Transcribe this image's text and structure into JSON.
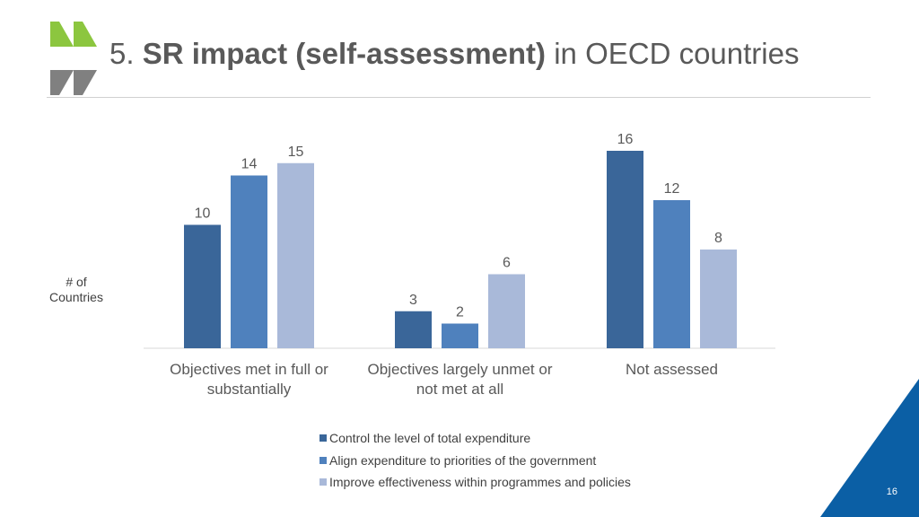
{
  "slide": {
    "title_prefix": "5. ",
    "title_bold": "SR impact (self-assessment)",
    "title_suffix": " in OECD countries",
    "page_number": "16",
    "logo_colors": [
      "#8cc63f",
      "#808080"
    ],
    "corner_color": "#0b5fa5"
  },
  "chart_data": {
    "type": "bar",
    "title": "5. SR impact (self-assessment) in OECD countries",
    "xlabel": "",
    "ylabel": "# of Countries",
    "ylabel_lines": [
      "# of",
      "Countries"
    ],
    "ylim": [
      0,
      16
    ],
    "grid": false,
    "legend_position": "bottom",
    "categories": [
      {
        "lines": [
          "Objectives met in full or",
          "substantially"
        ]
      },
      {
        "lines": [
          "Objectives largely unmet or",
          "not met at all"
        ]
      },
      {
        "lines": [
          "Not assessed"
        ]
      }
    ],
    "series": [
      {
        "name": "Control the level of total expenditure",
        "color": "#3a6699",
        "values": [
          10,
          3,
          16
        ]
      },
      {
        "name": "Align expenditure to priorities of the government",
        "color": "#4f81bd",
        "values": [
          14,
          2,
          12
        ]
      },
      {
        "name": "Improve effectiveness within programmes and policies",
        "color": "#a9b9d9",
        "values": [
          15,
          6,
          8
        ]
      }
    ]
  }
}
